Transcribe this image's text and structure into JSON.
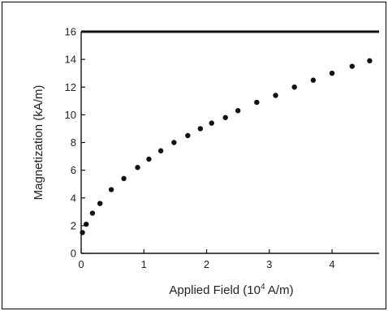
{
  "chart_data": {
    "type": "scatter",
    "title": "",
    "xlabel_parts": {
      "before": "Applied Field (10",
      "sup": "4",
      "after": " A/m)"
    },
    "ylabel": "Magnetization (kA/m)",
    "xlim": [
      0,
      4.75
    ],
    "ylim": [
      0,
      16
    ],
    "x_ticks": [
      "0",
      "1",
      "2",
      "3",
      "4"
    ],
    "y_ticks": [
      "0",
      "2",
      "4",
      "6",
      "8",
      "10",
      "12",
      "14",
      "16"
    ],
    "grid": false,
    "marker_color": "#111111",
    "points": [
      {
        "x": 0.02,
        "y": 1.5
      },
      {
        "x": 0.08,
        "y": 2.1
      },
      {
        "x": 0.18,
        "y": 2.9
      },
      {
        "x": 0.3,
        "y": 3.6
      },
      {
        "x": 0.48,
        "y": 4.6
      },
      {
        "x": 0.68,
        "y": 5.4
      },
      {
        "x": 0.9,
        "y": 6.2
      },
      {
        "x": 1.08,
        "y": 6.8
      },
      {
        "x": 1.27,
        "y": 7.4
      },
      {
        "x": 1.48,
        "y": 8.0
      },
      {
        "x": 1.7,
        "y": 8.5
      },
      {
        "x": 1.9,
        "y": 9.0
      },
      {
        "x": 2.08,
        "y": 9.4
      },
      {
        "x": 2.3,
        "y": 9.8
      },
      {
        "x": 2.5,
        "y": 10.3
      },
      {
        "x": 2.8,
        "y": 10.9
      },
      {
        "x": 3.1,
        "y": 11.4
      },
      {
        "x": 3.4,
        "y": 12.0
      },
      {
        "x": 3.7,
        "y": 12.5
      },
      {
        "x": 4.0,
        "y": 13.0
      },
      {
        "x": 4.32,
        "y": 13.5
      },
      {
        "x": 4.6,
        "y": 13.9
      }
    ]
  }
}
